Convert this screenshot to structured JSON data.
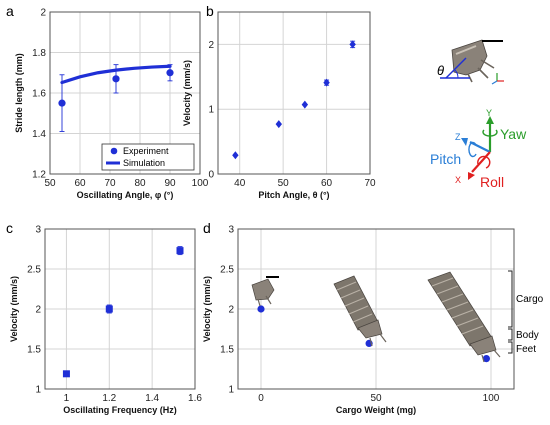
{
  "colors": {
    "marker": "#1f2fd6",
    "axis": "#555555",
    "grid": "#d4d4d4",
    "yaw": "#2a9d2a",
    "pitch": "#2a7ed6",
    "roll": "#e02020"
  },
  "chart_data": [
    {
      "panel_label": "a",
      "type": "scatter",
      "xlabel": "Oscillating Angle, φ (°)",
      "ylabel": "Stride length (mm)",
      "xlim": [
        50,
        100
      ],
      "ylim": [
        1.2,
        2.0
      ],
      "xticks": [
        "50",
        "60",
        "70",
        "80",
        "90",
        "100"
      ],
      "yticks": [
        "1.2",
        "1.4",
        "1.6",
        "1.8",
        "2"
      ],
      "grid": true,
      "legend_position": "bottom-right",
      "series": [
        {
          "name": "Experiment",
          "kind": "points",
          "x": [
            54,
            72,
            90
          ],
          "y": [
            1.55,
            1.67,
            1.7
          ],
          "err": [
            0.14,
            0.07,
            0.04
          ]
        },
        {
          "name": "Simulation",
          "kind": "line",
          "x": [
            54,
            60,
            66,
            72,
            78,
            84,
            90
          ],
          "y": [
            1.652,
            1.68,
            1.7,
            1.713,
            1.722,
            1.728,
            1.732
          ]
        }
      ]
    },
    {
      "panel_label": "b",
      "type": "scatter",
      "xlabel": "Pitch Angle, θ (°)",
      "ylabel": "Velocity (mm/s)",
      "xlim": [
        35,
        70
      ],
      "ylim": [
        0,
        2.5
      ],
      "xticks": [
        "40",
        "50",
        "60",
        "70"
      ],
      "yticks": [
        "0",
        "1",
        "2"
      ],
      "grid": true,
      "series": [
        {
          "x": [
            39,
            49,
            55,
            60,
            66
          ],
          "y": [
            0.29,
            0.77,
            1.07,
            1.41,
            2.0
          ],
          "err": [
            0,
            0,
            0,
            0.04,
            0.05
          ]
        }
      ]
    },
    {
      "panel_label": "c",
      "type": "scatter",
      "xlabel": "Oscillating Frequency (Hz)",
      "ylabel": "Velocity (mm/s)",
      "xlim": [
        0.9,
        1.6
      ],
      "ylim": [
        1.0,
        3.0
      ],
      "xticks": [
        "1",
        "1.2",
        "1.4",
        "1.6"
      ],
      "yticks": [
        "1",
        "1.5",
        "2",
        "2.5",
        "3"
      ],
      "grid": true,
      "series": [
        {
          "x": [
            1.0,
            1.2,
            1.53
          ],
          "y": [
            1.19,
            2.0,
            2.73
          ],
          "err": [
            0.03,
            0.05,
            0.05
          ]
        }
      ]
    },
    {
      "panel_label": "d",
      "type": "scatter",
      "xlabel": "Cargo Weight (mg)",
      "ylabel": "Velocity (mm/s)",
      "xlim": [
        -10,
        110
      ],
      "ylim": [
        1.0,
        3.0
      ],
      "xticks": [
        "0",
        "50",
        "100"
      ],
      "yticks": [
        "1",
        "1.5",
        "2",
        "2.5",
        "3"
      ],
      "grid": true,
      "series": [
        {
          "x": [
            0,
            47,
            98
          ],
          "y": [
            2.0,
            1.57,
            1.38
          ]
        }
      ],
      "annotations": [
        "Cargo",
        "Body",
        "Feet"
      ]
    }
  ],
  "axes_glyph": {
    "yaw": "Yaw",
    "pitch": "Pitch",
    "roll": "Roll",
    "y": "Y",
    "z": "Z",
    "x": "X",
    "theta": "θ"
  }
}
